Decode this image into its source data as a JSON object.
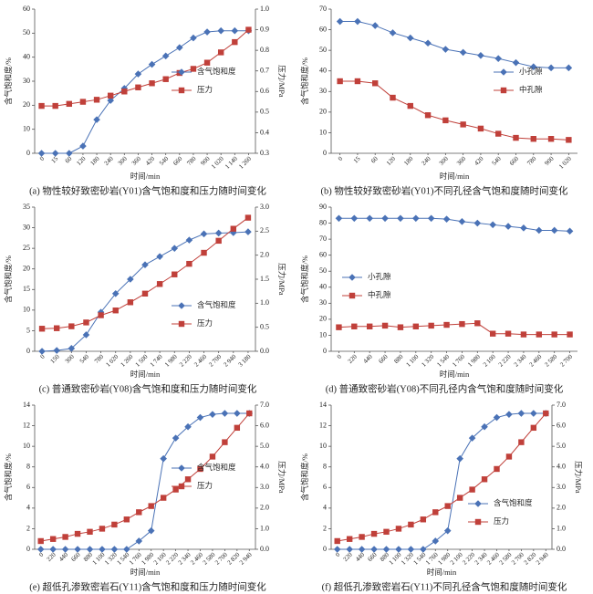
{
  "chart_data": [
    {
      "type": "line",
      "title": "(a) 物性较好致密砂岩(Y01)含气饱和度和压力随时间变化",
      "xlabel": "时间/min",
      "ylabel": "含气饱和度/%",
      "y2label": "压力/MPa",
      "legend": "right",
      "categories": [
        "0",
        "15",
        "60",
        "120",
        "180",
        "240",
        "300",
        "360",
        "420",
        "540",
        "660",
        "780",
        "900",
        "1 020",
        "1 140",
        "1 260"
      ],
      "series": [
        {
          "name": "含气饱和度",
          "color": "#4a72b6",
          "marker": "diamond",
          "values": [
            0,
            0,
            0,
            3,
            14,
            22,
            27,
            33,
            37,
            40.5,
            44,
            48,
            50.5,
            51,
            51,
            51
          ]
        },
        {
          "name": "压力",
          "color": "#c0403a",
          "marker": "square",
          "axis": "y2",
          "values": [
            0.53,
            0.53,
            0.54,
            0.55,
            0.56,
            0.58,
            0.6,
            0.62,
            0.64,
            0.66,
            0.69,
            0.71,
            0.74,
            0.79,
            0.84,
            0.9
          ]
        }
      ],
      "ylim": [
        0,
        60
      ],
      "yticks": [
        0,
        10,
        20,
        30,
        40,
        50,
        60
      ],
      "y2lim": [
        0.3,
        1
      ],
      "y2ticks": [
        0.3,
        0.4,
        0.5,
        0.6,
        0.7,
        0.8,
        0.9,
        {
          "value": 1,
          "label": "1.0"
        }
      ]
    },
    {
      "type": "line",
      "title": "(b) 物性较好致密砂岩(Y01)不同孔径含气饱和度随时间变化",
      "xlabel": "时间/min",
      "ylabel": "含气饱和度/%",
      "legend": "right",
      "categories": [
        "0",
        "15",
        "60",
        "120",
        "180",
        "240",
        "300",
        "360",
        "420",
        "540",
        "660",
        "780",
        "900",
        "1 020"
      ],
      "series": [
        {
          "name": "小孔隙",
          "color": "#4a72b6",
          "marker": "diamond",
          "values": [
            64,
            64,
            62,
            58.5,
            56,
            53.5,
            50.5,
            49,
            47.5,
            46,
            44,
            42,
            41.5,
            41.5
          ]
        },
        {
          "name": "中孔隙",
          "color": "#c0403a",
          "marker": "square",
          "values": [
            35,
            35,
            34,
            27,
            23,
            18.5,
            16,
            14,
            12,
            9.5,
            7.5,
            7,
            7,
            6.5
          ]
        }
      ],
      "ylim": [
        0,
        70
      ],
      "yticks": [
        0,
        10,
        20,
        30,
        40,
        50,
        60,
        70
      ]
    },
    {
      "type": "line",
      "title": "(c) 普通致密砂岩(Y08)含气饱和度和压力随时间变化",
      "xlabel": "时间/min",
      "ylabel": "含气饱和度/%",
      "y2label": "压力/MPa",
      "legend": "lower right",
      "categories": [
        "0",
        "150",
        "300",
        "540",
        "780",
        "1 020",
        "1 260",
        "1 500",
        "1 740",
        "1 980",
        "2 220",
        "2 460",
        "2 700",
        "2 940",
        "3 180"
      ],
      "series": [
        {
          "name": "含气饱和度",
          "color": "#4a72b6",
          "marker": "diamond",
          "values": [
            0,
            0.2,
            0.7,
            4,
            9.5,
            14,
            17.5,
            21,
            23,
            25,
            27,
            28.5,
            28.7,
            28.8,
            29
          ]
        },
        {
          "name": "压力",
          "color": "#c0403a",
          "marker": "square",
          "axis": "y2",
          "values": [
            0.47,
            0.48,
            0.52,
            0.6,
            0.75,
            0.85,
            1.02,
            1.2,
            1.4,
            1.6,
            1.82,
            2.05,
            2.3,
            2.55,
            2.78
          ]
        }
      ],
      "ylim": [
        0,
        35
      ],
      "yticks": [
        0,
        5,
        10,
        15,
        20,
        25,
        30,
        35
      ],
      "y2lim": [
        0,
        3
      ],
      "y2ticks": [
        {
          "value": 0,
          "label": "0.0"
        },
        0.5,
        {
          "value": 1,
          "label": "1.0"
        },
        1.5,
        {
          "value": 2,
          "label": "2.0"
        },
        2.5,
        {
          "value": 3,
          "label": "3.0"
        }
      ]
    },
    {
      "type": "line",
      "title": "(d) 普通致密砂岩(Y08)不同孔径内含气饱和度随时间变化",
      "xlabel": "时间/min",
      "ylabel": "含气饱和度/%",
      "legend": "left",
      "categories": [
        "0",
        "220",
        "440",
        "660",
        "880",
        "1 100",
        "1 320",
        "1 540",
        "1 760",
        "1 980",
        "2 100",
        "2 220",
        "2 340",
        "2 460",
        "2 580",
        "2 700"
      ],
      "series": [
        {
          "name": "小孔隙",
          "color": "#4a72b6",
          "marker": "diamond",
          "values": [
            83,
            83,
            83,
            83,
            83,
            83,
            83,
            82.5,
            81,
            80,
            79,
            78,
            77,
            75.5,
            75.5,
            75
          ]
        },
        {
          "name": "中孔隙",
          "color": "#c0403a",
          "marker": "square",
          "values": [
            15,
            15.5,
            15.5,
            16,
            15,
            15.5,
            16,
            16.5,
            17,
            17.5,
            11,
            11,
            10.5,
            10.5,
            10.5,
            10.5
          ]
        }
      ],
      "ylim": [
        0,
        90
      ],
      "yticks": [
        0,
        10,
        20,
        30,
        40,
        50,
        60,
        70,
        80,
        90
      ]
    },
    {
      "type": "line",
      "title": "(e) 超低孔渗致密岩石(Y11)含气饱和度和压力随时间变化",
      "xlabel": "时间/min",
      "ylabel": "含气饱和度/%",
      "y2label": "压力/MPa",
      "legend": "right",
      "categories": [
        "0",
        "220",
        "440",
        "660",
        "880",
        "1 100",
        "1 320",
        "1 540",
        "1 760",
        "1 980",
        "2 100",
        "2 220",
        "2 340",
        "2 460",
        "2 580",
        "2 700",
        "2 820",
        "2 940"
      ],
      "series": [
        {
          "name": "含气饱和度",
          "color": "#4a72b6",
          "marker": "diamond",
          "values": [
            0,
            0,
            0,
            0,
            0,
            0,
            0,
            0,
            0.8,
            1.8,
            8.8,
            10.8,
            11.9,
            12.8,
            13.1,
            13.2,
            13.2,
            13.2
          ]
        },
        {
          "name": "压力",
          "color": "#c0403a",
          "marker": "square",
          "axis": "y2",
          "values": [
            0.4,
            0.5,
            0.6,
            0.75,
            0.85,
            1,
            1.2,
            1.45,
            1.8,
            2.1,
            2.5,
            2.9,
            3.4,
            3.9,
            4.5,
            5.2,
            5.9,
            6.6
          ]
        }
      ],
      "ylim": [
        0,
        14
      ],
      "yticks": [
        0,
        2,
        4,
        6,
        8,
        10,
        12,
        14
      ],
      "y2lim": [
        0,
        7
      ],
      "y2ticks": [
        {
          "value": 0,
          "label": "0.0"
        },
        {
          "value": 1,
          "label": "1.0"
        },
        {
          "value": 2,
          "label": "2.0"
        },
        {
          "value": 3,
          "label": "3.0"
        },
        {
          "value": 4,
          "label": "4.0"
        },
        {
          "value": 5,
          "label": "5.0"
        },
        {
          "value": 6,
          "label": "6.0"
        },
        {
          "value": 7,
          "label": "7.0"
        }
      ]
    },
    {
      "type": "line",
      "title": "(f) 超低孔渗致密岩石(Y11)不同孔径含气饱和度随时间变化",
      "xlabel": "时间/min",
      "ylabel": "含气饱和度/%",
      "y2label": "压力/MPa",
      "legend": "lower right",
      "categories": [
        "0",
        "220",
        "440",
        "660",
        "880",
        "1 100",
        "1 320",
        "1 540",
        "1 760",
        "1 980",
        "2 100",
        "2 220",
        "2 340",
        "2 460",
        "2 580",
        "2 700",
        "2 820",
        "2 940"
      ],
      "series": [
        {
          "name": "含气饱和度",
          "color": "#4a72b6",
          "marker": "diamond",
          "values": [
            0,
            0,
            0,
            0,
            0,
            0,
            0,
            0,
            0.8,
            1.8,
            8.8,
            10.8,
            11.9,
            12.8,
            13.1,
            13.2,
            13.2,
            13.2
          ]
        },
        {
          "name": "压力",
          "color": "#c0403a",
          "marker": "square",
          "axis": "y2",
          "values": [
            0.4,
            0.5,
            0.6,
            0.75,
            0.85,
            1,
            1.2,
            1.45,
            1.8,
            2.1,
            2.5,
            2.9,
            3.4,
            3.9,
            4.5,
            5.2,
            5.9,
            6.6
          ]
        }
      ],
      "ylim": [
        0,
        14
      ],
      "yticks": [
        0,
        2,
        4,
        6,
        8,
        10,
        12,
        14
      ],
      "y2lim": [
        0,
        7
      ],
      "y2ticks": [
        {
          "value": 0,
          "label": "0.0"
        },
        {
          "value": 1,
          "label": "1.0"
        },
        {
          "value": 2,
          "label": "2.0"
        },
        {
          "value": 3,
          "label": "3.0"
        },
        {
          "value": 4,
          "label": "4.0"
        },
        {
          "value": 5,
          "label": "5.0"
        },
        {
          "value": 6,
          "label": "6.0"
        },
        {
          "value": 7,
          "label": "7.0"
        }
      ]
    }
  ]
}
